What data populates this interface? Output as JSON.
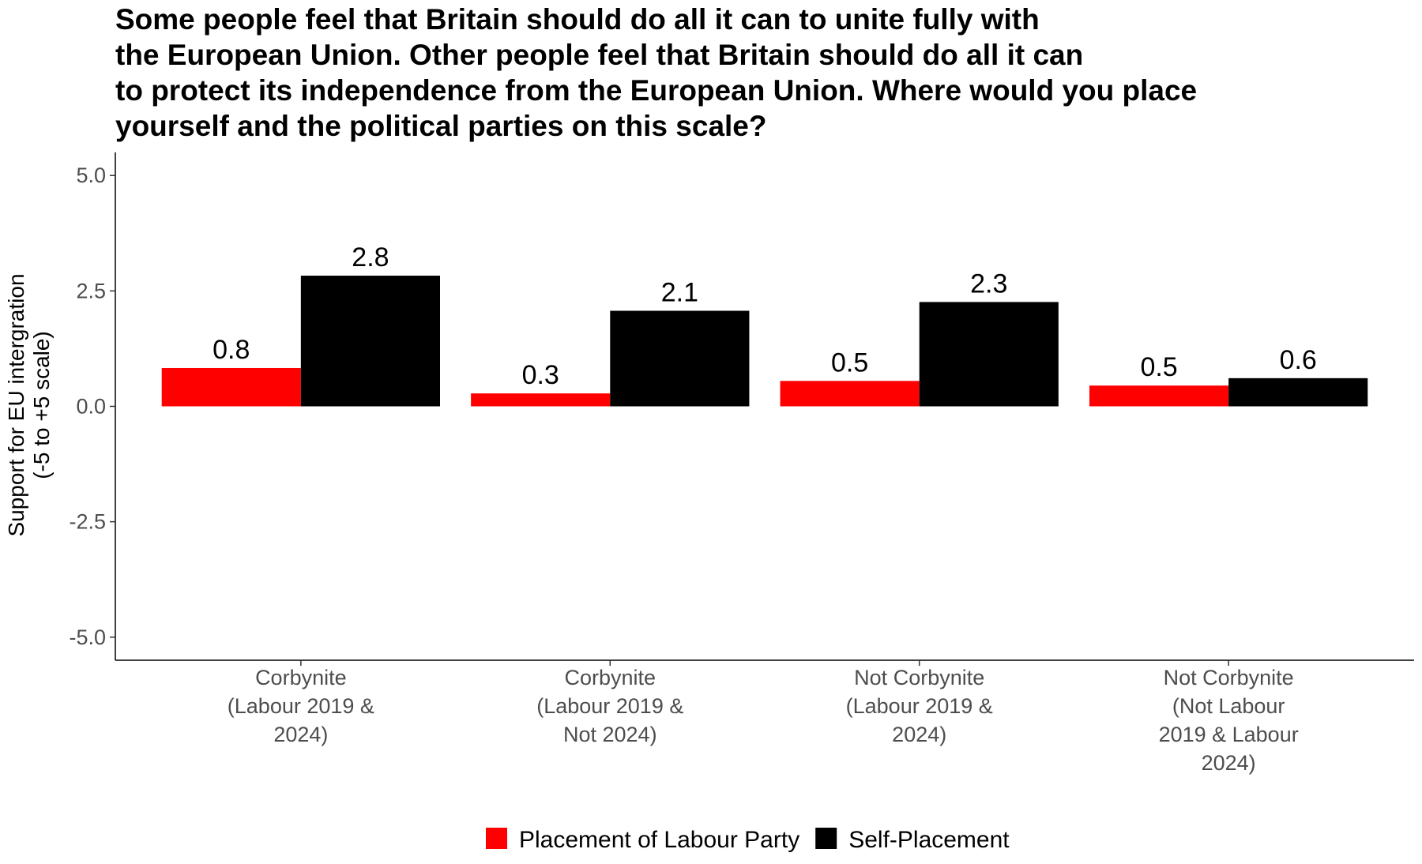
{
  "chart_data": {
    "type": "bar",
    "title": [
      "Some people feel that Britain should do all it can to unite fully with",
      "the European Union. Other people feel that Britain should do all it can",
      "to protect its independence from the European Union. Where would you place",
      "yourself and the political parties on this scale?"
    ],
    "y_label": [
      "Support for EU intergration",
      "(-5 to +5 scale)"
    ],
    "categories": [
      [
        "Corbynite",
        "(Labour 2019 &",
        "2024)"
      ],
      [
        "Corbynite",
        "(Labour 2019 &",
        "Not 2024)"
      ],
      [
        "Not Corbynite",
        "(Labour 2019 &",
        "2024)"
      ],
      [
        "Not Corbynite",
        "(Not Labour",
        "2019 & Labour",
        "2024)"
      ]
    ],
    "series": [
      {
        "name": "Placement of Labour Party",
        "color": "#ff0000",
        "values": [
          0.83,
          0.28,
          0.55,
          0.45
        ],
        "value_labels": [
          "0.8",
          "0.3",
          "0.5",
          "0.5"
        ]
      },
      {
        "name": "Self-Placement",
        "color": "#000000",
        "values": [
          2.83,
          2.07,
          2.26,
          0.61
        ],
        "value_labels": [
          "2.8",
          "2.1",
          "2.3",
          "0.6"
        ]
      }
    ],
    "ylim": [
      -5.5,
      5.5
    ],
    "yticks": [
      {
        "value": -5,
        "label": "-5.0"
      },
      {
        "value": -2.5,
        "label": "-2.5"
      },
      {
        "value": 0,
        "label": "0.0"
      },
      {
        "value": 2.5,
        "label": "2.5"
      },
      {
        "value": 5,
        "label": "5.0"
      }
    ],
    "legend": "bottom"
  }
}
